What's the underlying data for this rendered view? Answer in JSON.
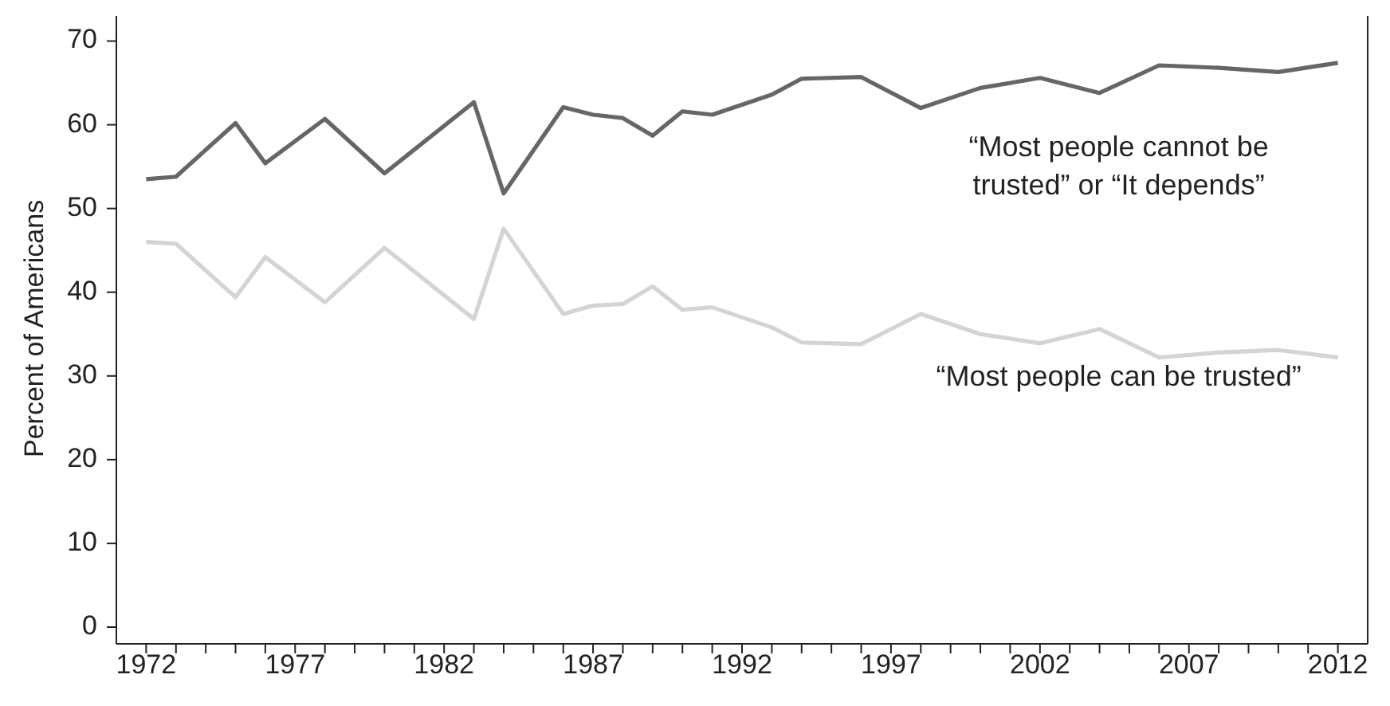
{
  "chart_data": {
    "type": "line",
    "ylabel": "Percent of Americans",
    "x": [
      1972,
      1973,
      1975,
      1976,
      1978,
      1980,
      1983,
      1984,
      1986,
      1987,
      1988,
      1989,
      1990,
      1991,
      1993,
      1994,
      1996,
      1998,
      2000,
      2002,
      2004,
      2006,
      2008,
      2010,
      2012
    ],
    "series": [
      {
        "name": "“Most people cannot be trusted” or “It depends”",
        "color": "#666666",
        "values": [
          53.5,
          53.8,
          60.2,
          55.4,
          60.7,
          54.2,
          62.7,
          51.8,
          62.1,
          61.2,
          60.8,
          58.7,
          61.6,
          61.2,
          63.6,
          65.5,
          65.7,
          62.0,
          64.4,
          65.6,
          63.8,
          67.1,
          66.8,
          66.3,
          67.4
        ]
      },
      {
        "name": "“Most people can be trusted”",
        "color": "#d4d4d4",
        "values": [
          46.0,
          45.8,
          39.4,
          44.2,
          38.8,
          45.3,
          36.8,
          47.6,
          37.4,
          38.4,
          38.6,
          40.7,
          37.9,
          38.2,
          35.8,
          34.0,
          33.8,
          37.4,
          35.0,
          33.9,
          35.6,
          32.2,
          32.8,
          33.1,
          32.2
        ]
      }
    ],
    "xlim": [
      1971,
      2013
    ],
    "ylim": [
      -2,
      73
    ],
    "xticks": [
      1972,
      {
        "value": 1973,
        "label": null
      },
      {
        "value": 1974,
        "label": null
      },
      {
        "value": 1975,
        "label": null
      },
      {
        "value": 1976,
        "label": null
      },
      1977,
      {
        "value": 1978,
        "label": null
      },
      {
        "value": 1979,
        "label": null
      },
      {
        "value": 1980,
        "label": null
      },
      {
        "value": 1981,
        "label": null
      },
      1982,
      {
        "value": 1983,
        "label": null
      },
      {
        "value": 1984,
        "label": null
      },
      {
        "value": 1985,
        "label": null
      },
      {
        "value": 1986,
        "label": null
      },
      1987,
      {
        "value": 1988,
        "label": null
      },
      {
        "value": 1989,
        "label": null
      },
      {
        "value": 1990,
        "label": null
      },
      {
        "value": 1991,
        "label": null
      },
      1992,
      {
        "value": 1993,
        "label": null
      },
      {
        "value": 1994,
        "label": null
      },
      {
        "value": 1995,
        "label": null
      },
      {
        "value": 1996,
        "label": null
      },
      1997,
      {
        "value": 1998,
        "label": null
      },
      {
        "value": 1999,
        "label": null
      },
      {
        "value": 2000,
        "label": null
      },
      {
        "value": 2001,
        "label": null
      },
      2002,
      {
        "value": 2003,
        "label": null
      },
      {
        "value": 2004,
        "label": null
      },
      {
        "value": 2005,
        "label": null
      },
      {
        "value": 2006,
        "label": null
      },
      2007,
      {
        "value": 2008,
        "label": null
      },
      {
        "value": 2009,
        "label": null
      },
      {
        "value": 2010,
        "label": null
      },
      {
        "value": 2011,
        "label": null
      },
      2012
    ],
    "yticks": [
      0,
      10,
      20,
      30,
      40,
      50,
      60,
      70
    ],
    "grid": false,
    "legend": false,
    "marker": "none",
    "line_style": "solid"
  }
}
